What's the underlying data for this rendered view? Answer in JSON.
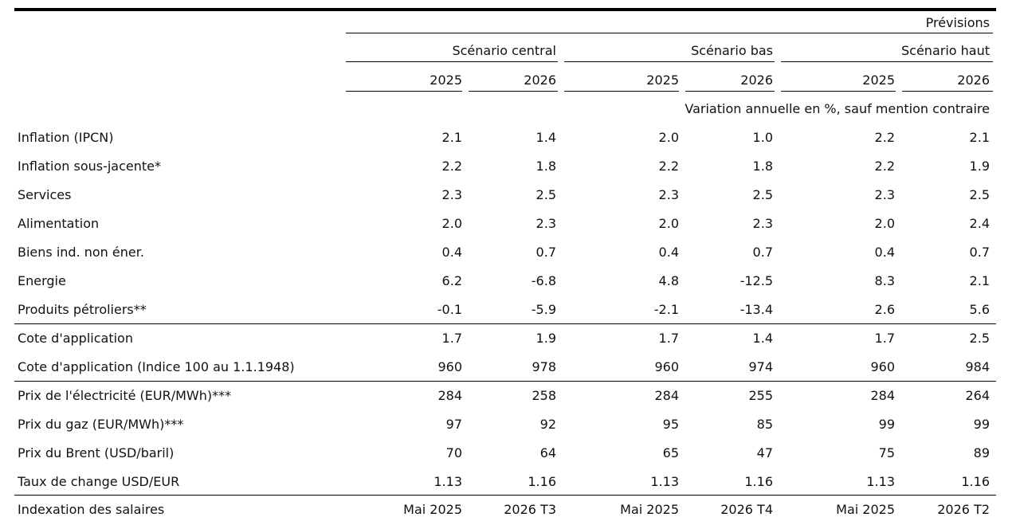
{
  "header": {
    "forecast_label": "Prévisions",
    "scenarios": [
      {
        "name": "Scénario central",
        "years": [
          "2025",
          "2026"
        ]
      },
      {
        "name": "Scénario bas",
        "years": [
          "2025",
          "2026"
        ]
      },
      {
        "name": "Scénario haut",
        "years": [
          "2025",
          "2026"
        ]
      }
    ],
    "unit_note": "Variation annuelle en %, sauf mention contraire"
  },
  "rows": [
    {
      "label": "Inflation (IPCN)",
      "values": [
        "2.1",
        "1.4",
        "2.0",
        "1.0",
        "2.2",
        "2.1"
      ]
    },
    {
      "label": "Inflation sous-jacente*",
      "values": [
        "2.2",
        "1.8",
        "2.2",
        "1.8",
        "2.2",
        "1.9"
      ]
    },
    {
      "label": "Services",
      "values": [
        "2.3",
        "2.5",
        "2.3",
        "2.5",
        "2.3",
        "2.5"
      ]
    },
    {
      "label": "Alimentation",
      "values": [
        "2.0",
        "2.3",
        "2.0",
        "2.3",
        "2.0",
        "2.4"
      ]
    },
    {
      "label": "Biens ind. non éner.",
      "values": [
        "0.4",
        "0.7",
        "0.4",
        "0.7",
        "0.4",
        "0.7"
      ]
    },
    {
      "label": "Energie",
      "values": [
        "6.2",
        "-6.8",
        "4.8",
        "-12.5",
        "8.3",
        "2.1"
      ]
    },
    {
      "label": "Produits pétroliers**",
      "values": [
        "-0.1",
        "-5.9",
        "-2.1",
        "-13.4",
        "2.6",
        "5.6"
      ]
    },
    {
      "label": "Cote d'application",
      "values": [
        "1.7",
        "1.9",
        "1.7",
        "1.4",
        "1.7",
        "2.5"
      ]
    },
    {
      "label": "Cote d'application (Indice 100 au 1.1.1948)",
      "values": [
        "960",
        "978",
        "960",
        "974",
        "960",
        "984"
      ]
    },
    {
      "label": "Prix de l'électricité (EUR/MWh)***",
      "values": [
        "284",
        "258",
        "284",
        "255",
        "284",
        "264"
      ]
    },
    {
      "label": "Prix du gaz (EUR/MWh)***",
      "values": [
        "97",
        "92",
        "95",
        "85",
        "99",
        "99"
      ]
    },
    {
      "label": "Prix du Brent (USD/baril)",
      "values": [
        "70",
        "64",
        "65",
        "47",
        "75",
        "89"
      ]
    },
    {
      "label": "Taux de change USD/EUR",
      "values": [
        "1.13",
        "1.16",
        "1.13",
        "1.16",
        "1.13",
        "1.16"
      ]
    },
    {
      "label": "Indexation des salaires",
      "values": [
        "Mai 2025",
        "2026 T3",
        "Mai 2025",
        "2026 T4",
        "Mai 2025",
        "2026 T2"
      ]
    }
  ]
}
